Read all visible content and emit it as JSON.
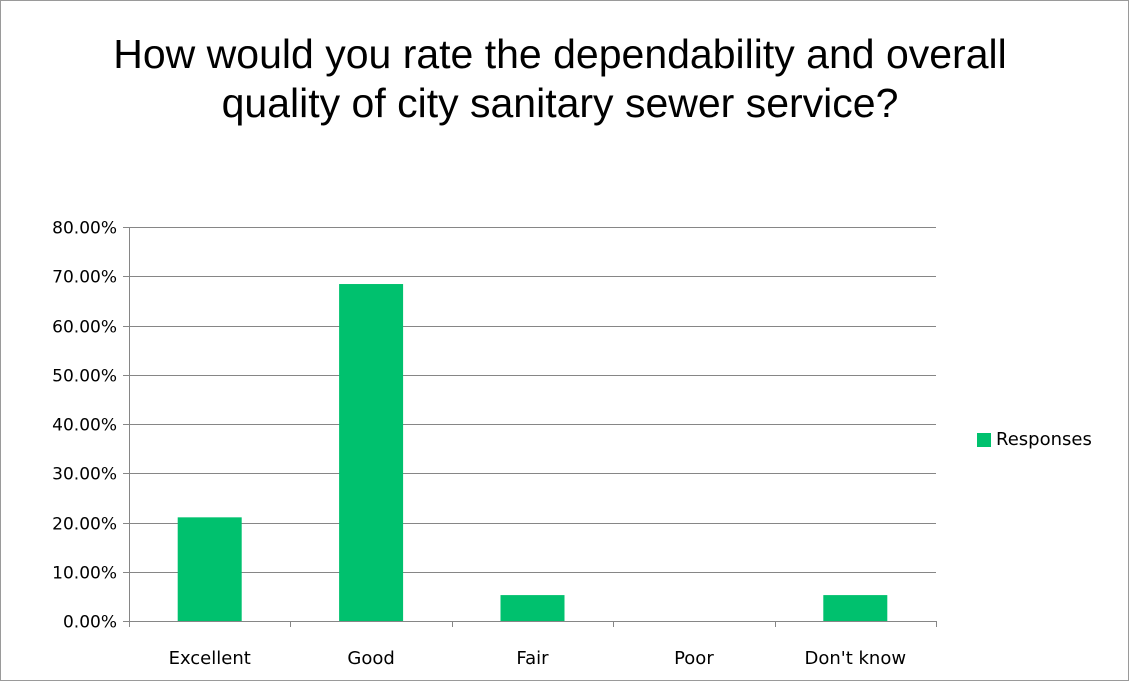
{
  "chart_data": {
    "type": "bar",
    "title": "How would you rate the dependability and overall quality of city sanitary sewer service?",
    "categories": [
      "Excellent",
      "Good",
      "Fair",
      "Poor",
      "Don't know"
    ],
    "series": [
      {
        "name": "Responses",
        "values": [
          0.2105,
          0.6842,
          0.0526,
          0.0,
          0.0526
        ],
        "color": "#00c16e"
      }
    ],
    "ylim": [
      0,
      0.8
    ],
    "yticks": [
      0,
      0.1,
      0.2,
      0.3,
      0.4,
      0.5,
      0.6,
      0.7,
      0.8
    ],
    "ytick_labels": [
      "0.00%",
      "10.00%",
      "20.00%",
      "30.00%",
      "40.00%",
      "50.00%",
      "60.00%",
      "70.00%",
      "80.00%"
    ],
    "grid": true,
    "legend": "right"
  },
  "colors": {
    "grid": "#868686",
    "axis": "#868686"
  }
}
